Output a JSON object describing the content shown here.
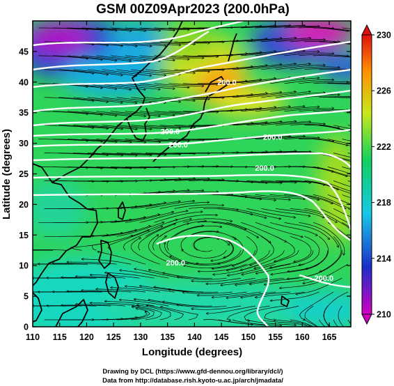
{
  "title": "GSM 00Z09Apr2023 (200.0hPa)",
  "xlabel": "Longitude (degrees)",
  "ylabel": "Latitude  (degrees)",
  "credits": [
    "Drawing by DCL (https://www.gfd-dennou.org/library/dcl/)",
    "Data from http://database.rish.kyoto-u.ac.jp/arch/jmadata/"
  ],
  "chart_data": {
    "type": "heatmap",
    "x_range": [
      110,
      169
    ],
    "y_range": [
      0,
      50
    ],
    "x_ticks": [
      "110",
      "115",
      "120",
      "125",
      "130",
      "135",
      "140",
      "145",
      "150",
      "155",
      "160",
      "165"
    ],
    "y_ticks": [
      "0",
      "5",
      "10",
      "15",
      "20",
      "25",
      "30",
      "35",
      "40",
      "45"
    ],
    "colorbar": {
      "range": [
        210,
        230
      ],
      "ticks": [
        "210",
        "214",
        "218",
        "222",
        "226",
        "230"
      ],
      "colors": [
        "#d000c0",
        "#1c2ec8",
        "#18c8e8",
        "#10d060",
        "#c8e81a",
        "#ff9000",
        "#e01010"
      ]
    },
    "contour_labels": [
      {
        "text": "200.0",
        "lon": 146.0,
        "lat": 39.5
      },
      {
        "text": "200.0",
        "lon": 135.5,
        "lat": 31.5
      },
      {
        "text": "200.0",
        "lon": 137.0,
        "lat": 29.3
      },
      {
        "text": "200.0",
        "lon": 154.5,
        "lat": 30.6
      },
      {
        "text": "200.0",
        "lon": 153.0,
        "lat": 25.5
      },
      {
        "text": "200.0",
        "lon": 136.5,
        "lat": 10.0
      },
      {
        "text": "200.0",
        "lon": 164.0,
        "lat": 7.5
      }
    ],
    "color_scale_label_unit": ""
  },
  "colors": {
    "coast": "#000000",
    "streamline": "#000000",
    "contour": "#ffffff"
  }
}
